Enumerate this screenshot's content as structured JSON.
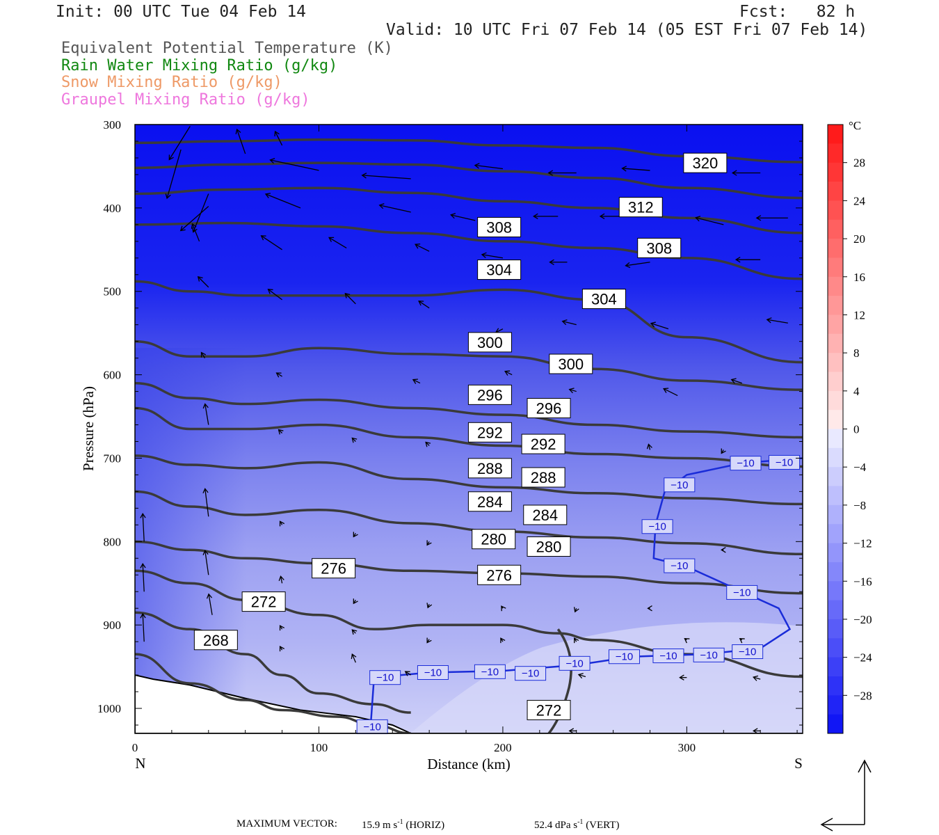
{
  "header": {
    "init": "Init: 00 UTC Tue 04 Feb 14",
    "fcst": "Fcst:   82 h",
    "valid": "Valid: 10 UTC Fri 07 Feb 14 (05 EST Fri 07 Feb 14)"
  },
  "legend": [
    {
      "text": "Equivalent Potential Temperature (K)",
      "color": "#555555"
    },
    {
      "text": "Rain Water Mixing Ratio (g/kg)",
      "color": "#118811"
    },
    {
      "text": "Snow Mixing Ratio (g/kg)",
      "color": "#ee9966"
    },
    {
      "text": "Graupel Mixing Ratio (g/kg)",
      "color": "#ee77dd"
    }
  ],
  "footer": {
    "max_vector_label": "MAXIMUM VECTOR:",
    "horiz_value": "15.9 m s",
    "horiz_sup": "-1",
    "horiz_tag": "(HORIZ)",
    "vert_value": "52.4 dPa s",
    "vert_sup": "-1",
    "vert_tag": "(VERT)"
  },
  "chart_data": {
    "type": "cross-section",
    "xlabel": "Distance (km)",
    "ylabel": "Pressure (hPa)",
    "x_end_labels": {
      "left": "N",
      "right": "S"
    },
    "xlim": [
      0,
      363
    ],
    "ylim": [
      1030,
      300
    ],
    "xticks": [
      0,
      100,
      200,
      300
    ],
    "yticks": [
      300,
      400,
      500,
      600,
      700,
      800,
      900,
      1000
    ],
    "colorbar": {
      "unit": "°C",
      "labels": [
        28,
        24,
        20,
        16,
        12,
        8,
        4,
        0,
        -4,
        -8,
        -12,
        -16,
        -20,
        -24,
        -28
      ],
      "range": [
        -32,
        32
      ]
    },
    "theta_e_contours": [
      {
        "level": 320,
        "labels": [
          {
            "x": 310,
            "p": 346
          }
        ],
        "points": [
          [
            0,
            322
          ],
          [
            50,
            320
          ],
          [
            100,
            318
          ],
          [
            150,
            319
          ],
          [
            200,
            325
          ],
          [
            250,
            328
          ],
          [
            300,
            338
          ],
          [
            363,
            345
          ]
        ]
      },
      {
        "level": 316,
        "labels": [],
        "points": [
          [
            0,
            352
          ],
          [
            50,
            348
          ],
          [
            100,
            346
          ],
          [
            150,
            348
          ],
          [
            200,
            356
          ],
          [
            250,
            364
          ],
          [
            300,
            376
          ],
          [
            363,
            388
          ]
        ]
      },
      {
        "level": 312,
        "labels": [
          {
            "x": 275,
            "p": 399
          }
        ],
        "points": [
          [
            0,
            383
          ],
          [
            50,
            378
          ],
          [
            100,
            376
          ],
          [
            150,
            382
          ],
          [
            200,
            392
          ],
          [
            250,
            400
          ],
          [
            300,
            412
          ],
          [
            363,
            430
          ]
        ]
      },
      {
        "level": 308,
        "labels": [
          {
            "x": 198,
            "p": 423
          },
          {
            "x": 285,
            "p": 448
          }
        ],
        "points": [
          [
            0,
            420
          ],
          [
            50,
            418
          ],
          [
            100,
            422
          ],
          [
            150,
            430
          ],
          [
            200,
            440
          ],
          [
            250,
            448
          ],
          [
            300,
            460
          ],
          [
            363,
            485
          ]
        ]
      },
      {
        "level": 304,
        "labels": [
          {
            "x": 198,
            "p": 474
          },
          {
            "x": 255,
            "p": 509
          }
        ],
        "points": [
          [
            0,
            488
          ],
          [
            30,
            500
          ],
          [
            60,
            505
          ],
          [
            100,
            505
          ],
          [
            150,
            505
          ],
          [
            200,
            498
          ],
          [
            250,
            510
          ],
          [
            300,
            555
          ],
          [
            363,
            585
          ]
        ]
      },
      {
        "level": 300,
        "labels": [
          {
            "x": 193,
            "p": 561
          },
          {
            "x": 237,
            "p": 587
          }
        ],
        "points": [
          [
            0,
            560
          ],
          [
            30,
            578
          ],
          [
            60,
            578
          ],
          [
            100,
            568
          ],
          [
            150,
            575
          ],
          [
            200,
            578
          ],
          [
            250,
            593
          ],
          [
            300,
            607
          ],
          [
            363,
            618
          ]
        ]
      },
      {
        "level": 296,
        "labels": [
          {
            "x": 193,
            "p": 624
          },
          {
            "x": 225,
            "p": 640
          }
        ],
        "points": [
          [
            0,
            610
          ],
          [
            30,
            628
          ],
          [
            60,
            635
          ],
          [
            100,
            630
          ],
          [
            150,
            640
          ],
          [
            200,
            648
          ],
          [
            250,
            660
          ],
          [
            300,
            668
          ],
          [
            363,
            675
          ]
        ]
      },
      {
        "level": 292,
        "labels": [
          {
            "x": 193,
            "p": 669
          },
          {
            "x": 222,
            "p": 683
          }
        ],
        "points": [
          [
            0,
            640
          ],
          [
            30,
            665
          ],
          [
            60,
            665
          ],
          [
            100,
            660
          ],
          [
            150,
            675
          ],
          [
            200,
            685
          ],
          [
            250,
            695
          ],
          [
            300,
            700
          ],
          [
            363,
            710
          ]
        ]
      },
      {
        "level": 288,
        "labels": [
          {
            "x": 193,
            "p": 712
          },
          {
            "x": 222,
            "p": 723
          }
        ],
        "points": [
          [
            0,
            697
          ],
          [
            30,
            708
          ],
          [
            60,
            712
          ],
          [
            100,
            705
          ],
          [
            150,
            725
          ],
          [
            200,
            735
          ],
          [
            250,
            742
          ],
          [
            300,
            748
          ],
          [
            363,
            755
          ]
        ]
      },
      {
        "level": 284,
        "labels": [
          {
            "x": 193,
            "p": 752
          },
          {
            "x": 223,
            "p": 768
          }
        ],
        "points": [
          [
            0,
            740
          ],
          [
            30,
            758
          ],
          [
            60,
            768
          ],
          [
            100,
            762
          ],
          [
            150,
            778
          ],
          [
            200,
            788
          ],
          [
            250,
            795
          ],
          [
            300,
            802
          ],
          [
            363,
            815
          ]
        ]
      },
      {
        "level": 280,
        "labels": [
          {
            "x": 195,
            "p": 797
          },
          {
            "x": 225,
            "p": 806
          }
        ],
        "points": [
          [
            0,
            800
          ],
          [
            30,
            810
          ],
          [
            60,
            820
          ],
          [
            100,
            826
          ],
          [
            150,
            835
          ],
          [
            200,
            838
          ],
          [
            250,
            842
          ],
          [
            300,
            850
          ],
          [
            363,
            862
          ]
        ]
      },
      {
        "level": 276,
        "labels": [
          {
            "x": 108,
            "p": 832
          },
          {
            "x": 198,
            "p": 840
          }
        ],
        "points": [
          [
            0,
            835
          ],
          [
            30,
            850
          ],
          [
            60,
            870
          ],
          [
            100,
            888
          ],
          [
            130,
            905
          ],
          [
            160,
            900
          ],
          [
            200,
            900
          ],
          [
            230,
            910
          ],
          [
            250,
            918
          ],
          [
            300,
            935
          ],
          [
            363,
            962
          ]
        ]
      },
      {
        "level": 272,
        "labels": [
          {
            "x": 70,
            "p": 872
          },
          {
            "x": 225,
            "p": 1002
          }
        ],
        "points": [
          [
            0,
            885
          ],
          [
            30,
            905
          ],
          [
            60,
            935
          ],
          [
            80,
            960
          ],
          [
            100,
            982
          ],
          [
            130,
            995
          ],
          [
            150,
            1005
          ]
        ]
      },
      {
        "level": 268,
        "labels": [
          {
            "x": 44,
            "p": 918
          }
        ],
        "points": [
          [
            0,
            935
          ],
          [
            30,
            970
          ],
          [
            60,
            990
          ],
          [
            80,
            1002
          ],
          [
            110,
            1010
          ],
          [
            130,
            1020
          ],
          [
            150,
            1030
          ]
        ]
      }
    ],
    "temperature_contours": [
      {
        "level": -10,
        "labels": [
          {
            "x": 136,
            "p": 963
          },
          {
            "x": 162,
            "p": 957
          },
          {
            "x": 193,
            "p": 956
          },
          {
            "x": 215,
            "p": 958
          },
          {
            "x": 239,
            "p": 946
          },
          {
            "x": 266,
            "p": 938
          },
          {
            "x": 290,
            "p": 937
          },
          {
            "x": 312,
            "p": 936
          },
          {
            "x": 333,
            "p": 932
          },
          {
            "x": 296,
            "p": 732
          },
          {
            "x": 332,
            "p": 706
          },
          {
            "x": 353,
            "p": 705
          },
          {
            "x": 284,
            "p": 782
          },
          {
            "x": 296,
            "p": 829
          },
          {
            "x": 330,
            "p": 861
          },
          {
            "x": 129,
            "p": 1022
          }
        ]
      }
    ]
  }
}
